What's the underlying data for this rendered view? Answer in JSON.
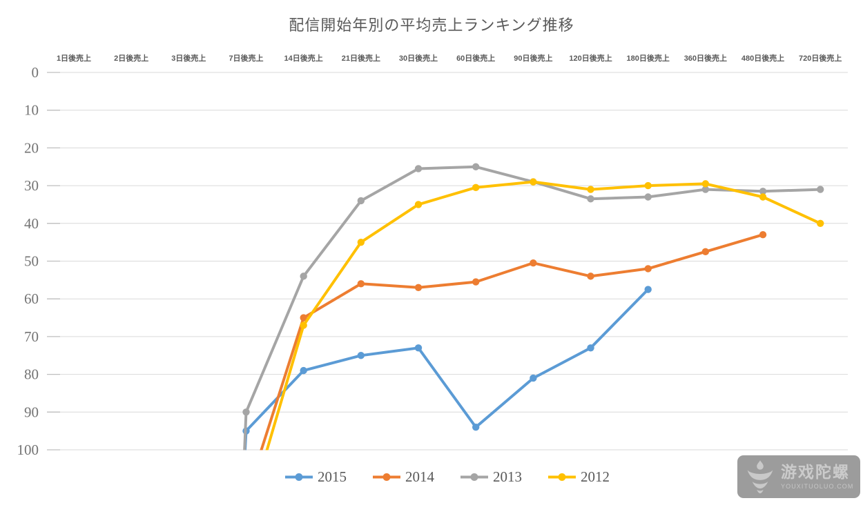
{
  "chart_data": {
    "type": "line",
    "title": "配信開始年別の平均売上ランキング推移",
    "x_axis_position": "top",
    "categories": [
      "1日後売上",
      "2日後売上",
      "3日後売上",
      "7日後売上",
      "14日後売上",
      "21日後売上",
      "30日後売上",
      "60日後売上",
      "90日後売上",
      "120日後売上",
      "180日後売上",
      "360日後売上",
      "480日後売上",
      "720日後売上"
    ],
    "y_axis": {
      "label_values": [
        0,
        10,
        20,
        30,
        40,
        50,
        60,
        70,
        80,
        90,
        100
      ],
      "min": 0,
      "max": 100,
      "inverted": true,
      "gridlines": true,
      "gridline_color": "#D9D9D9",
      "tick_color": "#BFBFBF"
    },
    "legend_position": "bottom",
    "series": [
      {
        "name": "2015",
        "color": "#5B9BD5",
        "values": [
          null,
          null,
          null,
          95,
          79,
          75,
          73,
          94,
          81,
          73,
          57.5,
          null,
          null,
          null
        ],
        "enters_offscale_below_at_x": 2.98
      },
      {
        "name": "2014",
        "color": "#ED7D31",
        "values": [
          null,
          null,
          null,
          null,
          65,
          56,
          57,
          55.5,
          50.5,
          54,
          52,
          47.5,
          43,
          null
        ],
        "enters_offscale_below_at_x": 3.25
      },
      {
        "name": "2013",
        "color": "#A5A5A5",
        "values": [
          null,
          null,
          null,
          90,
          54,
          34,
          25.5,
          25,
          29,
          33.5,
          33,
          31,
          31.5,
          31
        ],
        "enters_offscale_below_at_x": 2.97
      },
      {
        "name": "2012",
        "color": "#FFC000",
        "values": [
          null,
          null,
          null,
          null,
          67,
          45,
          35,
          30.5,
          29,
          31,
          30,
          29.5,
          33,
          40
        ],
        "enters_offscale_below_at_x": 3.35
      }
    ]
  },
  "watermark": {
    "name": "游戏陀螺",
    "domain": "YOUXITUOLUO.COM"
  }
}
